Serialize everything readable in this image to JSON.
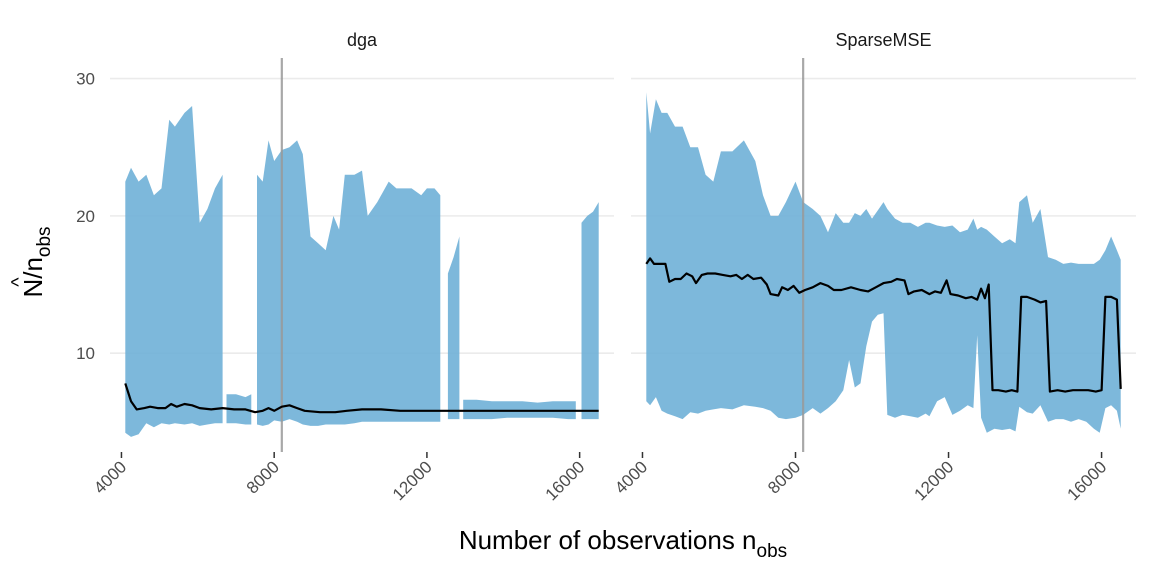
{
  "chart_data": {
    "type": "area",
    "xlabel": {
      "main": "Number of observations n",
      "sub": "obs"
    },
    "ylabel": {
      "hat": "^",
      "main": "N/n",
      "sub": "obs"
    },
    "xlim": [
      3700,
      16900
    ],
    "ylim": [
      2.8,
      31.5
    ],
    "x_ticks": [
      4000,
      8000,
      12000,
      16000
    ],
    "y_ticks": [
      10,
      20,
      30
    ],
    "grid": true,
    "legend": "none",
    "vline_x": 8200,
    "colors": {
      "ribbon": "#6baed6",
      "line": "#000000",
      "grid": "#ebebeb",
      "vline": "#999999"
    },
    "panels": [
      {
        "name": "dga",
        "ribbon_segments": [
          [
            [
              4100,
              4.2,
              22.5
            ],
            [
              4250,
              3.9,
              23.5
            ],
            [
              4450,
              4.1,
              22.5
            ],
            [
              4650,
              4.9,
              23
            ],
            [
              4850,
              4.6,
              21.5
            ],
            [
              5050,
              4.9,
              22
            ],
            [
              5250,
              4.8,
              27
            ],
            [
              5400,
              4.9,
              26.5
            ],
            [
              5650,
              4.8,
              27.5
            ],
            [
              5850,
              4.9,
              28
            ],
            [
              6050,
              4.7,
              19.5
            ],
            [
              6250,
              4.8,
              20.5
            ],
            [
              6450,
              4.9,
              22
            ],
            [
              6650,
              4.9,
              23
            ]
          ],
          [
            [
              6750,
              4.9,
              7
            ],
            [
              7000,
              4.9,
              7
            ],
            [
              7250,
              4.8,
              6.8
            ],
            [
              7400,
              4.8,
              7
            ]
          ],
          [
            [
              7550,
              4.8,
              23
            ],
            [
              7700,
              4.7,
              22.5
            ],
            [
              7850,
              4.8,
              25.5
            ],
            [
              8000,
              5.1,
              24
            ],
            [
              8200,
              5.0,
              24.8
            ],
            [
              8400,
              5.2,
              25
            ],
            [
              8600,
              5.0,
              25.5
            ],
            [
              8750,
              4.8,
              24.5
            ],
            [
              8950,
              4.7,
              18.5
            ],
            [
              9150,
              4.7,
              18
            ],
            [
              9350,
              4.8,
              17.5
            ],
            [
              9550,
              4.8,
              20
            ],
            [
              9700,
              4.8,
              19
            ],
            [
              9850,
              4.8,
              23
            ],
            [
              10100,
              4.9,
              23
            ],
            [
              10300,
              5.0,
              23.3
            ],
            [
              10450,
              5.0,
              20
            ],
            [
              10700,
              5.0,
              21
            ],
            [
              11000,
              5.0,
              22.5
            ],
            [
              11200,
              5.0,
              22
            ],
            [
              11400,
              5.0,
              22
            ],
            [
              11600,
              5.0,
              22
            ],
            [
              11850,
              5.0,
              21.5
            ],
            [
              12000,
              5.0,
              22
            ],
            [
              12200,
              5.0,
              22
            ],
            [
              12350,
              5.0,
              21.5
            ]
          ],
          [
            [
              12550,
              5.2,
              15.8
            ],
            [
              12700,
              5.2,
              17
            ],
            [
              12850,
              5.2,
              18.5
            ]
          ],
          [
            [
              12950,
              5.2,
              6.6
            ],
            [
              13300,
              5.2,
              6.6
            ],
            [
              13700,
              5.2,
              6.5
            ],
            [
              14100,
              5.3,
              6.5
            ],
            [
              14500,
              5.3,
              6.5
            ],
            [
              14900,
              5.3,
              6.4
            ],
            [
              15300,
              5.3,
              6.5
            ],
            [
              15700,
              5.2,
              6.5
            ],
            [
              15900,
              5.2,
              6.5
            ]
          ],
          [
            [
              16050,
              5.2,
              19.5
            ],
            [
              16200,
              5.2,
              20
            ],
            [
              16350,
              5.2,
              20.3
            ],
            [
              16500,
              5.2,
              21
            ]
          ]
        ],
        "estimate": [
          [
            4100,
            7.8
          ],
          [
            4250,
            6.5
          ],
          [
            4400,
            5.9
          ],
          [
            4600,
            6.0
          ],
          [
            4750,
            6.1
          ],
          [
            4950,
            6.0
          ],
          [
            5150,
            6.0
          ],
          [
            5300,
            6.3
          ],
          [
            5450,
            6.1
          ],
          [
            5650,
            6.3
          ],
          [
            5850,
            6.2
          ],
          [
            6050,
            6.0
          ],
          [
            6350,
            5.9
          ],
          [
            6650,
            6.0
          ],
          [
            6950,
            5.9
          ],
          [
            7250,
            5.9
          ],
          [
            7500,
            5.7
          ],
          [
            7700,
            5.8
          ],
          [
            7850,
            6.0
          ],
          [
            8000,
            5.8
          ],
          [
            8200,
            6.1
          ],
          [
            8400,
            6.2
          ],
          [
            8600,
            6.0
          ],
          [
            8800,
            5.8
          ],
          [
            9200,
            5.7
          ],
          [
            9600,
            5.7
          ],
          [
            9900,
            5.8
          ],
          [
            10300,
            5.9
          ],
          [
            10800,
            5.9
          ],
          [
            11300,
            5.8
          ],
          [
            11800,
            5.8
          ],
          [
            12300,
            5.8
          ],
          [
            12800,
            5.8
          ],
          [
            13300,
            5.8
          ],
          [
            13800,
            5.8
          ],
          [
            14300,
            5.8
          ],
          [
            14800,
            5.8
          ],
          [
            15300,
            5.8
          ],
          [
            15800,
            5.8
          ],
          [
            16200,
            5.8
          ],
          [
            16500,
            5.8
          ]
        ]
      },
      {
        "name": "SparseMSE",
        "ribbon_segments": [
          [
            [
              4100,
              6.5,
              29
            ],
            [
              4200,
              6.2,
              26
            ],
            [
              4350,
              6.8,
              28.5
            ],
            [
              4500,
              5.8,
              27.5
            ],
            [
              4650,
              5.6,
              27.5
            ],
            [
              4850,
              5.4,
              26.5
            ],
            [
              5050,
              5.2,
              26.5
            ],
            [
              5250,
              5.7,
              25
            ],
            [
              5450,
              5.6,
              25
            ],
            [
              5650,
              5.8,
              23
            ],
            [
              5850,
              5.9,
              22.5
            ],
            [
              6050,
              6.0,
              24.7
            ],
            [
              6350,
              5.9,
              24.7
            ],
            [
              6650,
              6.2,
              25.5
            ],
            [
              6950,
              6.1,
              24
            ],
            [
              7150,
              6.0,
              21.5
            ],
            [
              7350,
              5.8,
              20
            ],
            [
              7550,
              5.3,
              20
            ],
            [
              7750,
              5.2,
              21
            ],
            [
              8000,
              5.3,
              22.5
            ],
            [
              8200,
              5.5,
              21
            ],
            [
              8450,
              6.0,
              20.5
            ],
            [
              8650,
              5.6,
              20
            ],
            [
              8850,
              6.0,
              18.8
            ],
            [
              9050,
              6.5,
              20.2
            ],
            [
              9250,
              7.3,
              19.5
            ],
            [
              9400,
              9.5,
              19.5
            ],
            [
              9550,
              7.5,
              20.2
            ],
            [
              9700,
              7.8,
              20
            ],
            [
              9850,
              10.5,
              20.5
            ],
            [
              10000,
              12.3,
              19.8
            ],
            [
              10150,
              12.8,
              20.4
            ],
            [
              10300,
              12.9,
              21
            ],
            [
              10400,
              5.5,
              20.5
            ],
            [
              10600,
              5.3,
              19.8
            ],
            [
              10800,
              5.5,
              19.5
            ],
            [
              11000,
              5.4,
              19.5
            ],
            [
              11200,
              5.3,
              19.2
            ],
            [
              11400,
              5.6,
              19.5
            ],
            [
              11500,
              5.4,
              19.5
            ],
            [
              11700,
              6.5,
              19.3
            ],
            [
              11900,
              6.8,
              19.2
            ],
            [
              12100,
              5.5,
              19.3
            ],
            [
              12300,
              5.8,
              18.8
            ],
            [
              12500,
              6.2,
              19
            ],
            [
              12650,
              6.0,
              19.8
            ],
            [
              12750,
              11.3,
              19
            ],
            [
              12850,
              5.3,
              19.2
            ],
            [
              13000,
              4.2,
              19
            ],
            [
              13200,
              4.5,
              18.5
            ],
            [
              13400,
              4.4,
              18
            ],
            [
              13600,
              4.5,
              18.3
            ],
            [
              13750,
              4.3,
              18
            ],
            [
              13850,
              6.1,
              21
            ],
            [
              14050,
              5.7,
              21.5
            ],
            [
              14200,
              5.6,
              19.5
            ],
            [
              14400,
              6.2,
              20.5
            ],
            [
              14600,
              5.0,
              17
            ],
            [
              14800,
              5.2,
              16.8
            ],
            [
              15000,
              5.2,
              16.5
            ],
            [
              15200,
              5.0,
              16.6
            ],
            [
              15400,
              5.2,
              16.5
            ],
            [
              15600,
              5.0,
              16.5
            ],
            [
              15800,
              4.5,
              16.5
            ],
            [
              15950,
              4.2,
              16.8
            ],
            [
              16100,
              6.0,
              17.5
            ],
            [
              16250,
              6.2,
              18.5
            ],
            [
              16400,
              5.8,
              17.5
            ],
            [
              16500,
              4.5,
              16.8
            ]
          ]
        ],
        "estimate": [
          [
            4100,
            16.5
          ],
          [
            4200,
            16.9
          ],
          [
            4300,
            16.5
          ],
          [
            4400,
            16.5
          ],
          [
            4600,
            16.5
          ],
          [
            4700,
            15.2
          ],
          [
            4850,
            15.4
          ],
          [
            5000,
            15.4
          ],
          [
            5150,
            15.8
          ],
          [
            5300,
            15.6
          ],
          [
            5400,
            15.1
          ],
          [
            5550,
            15.7
          ],
          [
            5700,
            15.8
          ],
          [
            5900,
            15.8
          ],
          [
            6100,
            15.7
          ],
          [
            6300,
            15.6
          ],
          [
            6450,
            15.7
          ],
          [
            6600,
            15.4
          ],
          [
            6750,
            15.7
          ],
          [
            6900,
            15.4
          ],
          [
            7100,
            15.5
          ],
          [
            7250,
            15.0
          ],
          [
            7350,
            14.3
          ],
          [
            7550,
            14.2
          ],
          [
            7650,
            14.8
          ],
          [
            7800,
            14.6
          ],
          [
            7950,
            14.9
          ],
          [
            8100,
            14.4
          ],
          [
            8250,
            14.6
          ],
          [
            8450,
            14.8
          ],
          [
            8650,
            15.1
          ],
          [
            8850,
            14.9
          ],
          [
            9000,
            14.6
          ],
          [
            9200,
            14.6
          ],
          [
            9450,
            14.8
          ],
          [
            9700,
            14.6
          ],
          [
            9900,
            14.5
          ],
          [
            10100,
            14.8
          ],
          [
            10300,
            15.1
          ],
          [
            10500,
            15.2
          ],
          [
            10650,
            15.4
          ],
          [
            10850,
            15.3
          ],
          [
            10950,
            14.3
          ],
          [
            11100,
            14.5
          ],
          [
            11300,
            14.6
          ],
          [
            11500,
            14.3
          ],
          [
            11650,
            14.5
          ],
          [
            11800,
            14.4
          ],
          [
            11950,
            15.3
          ],
          [
            12050,
            14.3
          ],
          [
            12250,
            14.2
          ],
          [
            12450,
            14.0
          ],
          [
            12600,
            14.1
          ],
          [
            12750,
            13.9
          ],
          [
            12850,
            14.7
          ],
          [
            12950,
            14.0
          ],
          [
            13050,
            15.0
          ],
          [
            13150,
            7.3
          ],
          [
            13300,
            7.3
          ],
          [
            13500,
            7.2
          ],
          [
            13650,
            7.3
          ],
          [
            13800,
            7.2
          ],
          [
            13900,
            14.1
          ],
          [
            14050,
            14.1
          ],
          [
            14250,
            13.9
          ],
          [
            14400,
            13.7
          ],
          [
            14550,
            13.8
          ],
          [
            14650,
            7.2
          ],
          [
            14850,
            7.3
          ],
          [
            15050,
            7.2
          ],
          [
            15250,
            7.3
          ],
          [
            15450,
            7.3
          ],
          [
            15650,
            7.3
          ],
          [
            15850,
            7.2
          ],
          [
            16000,
            7.3
          ],
          [
            16100,
            14.1
          ],
          [
            16250,
            14.1
          ],
          [
            16400,
            13.9
          ],
          [
            16500,
            7.4
          ]
        ]
      }
    ]
  }
}
